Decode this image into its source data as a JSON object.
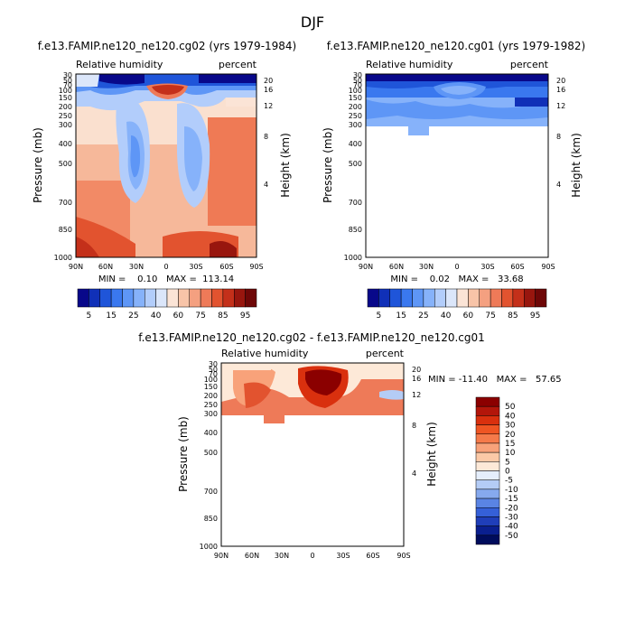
{
  "page_title": "DJF",
  "chart_data": [
    {
      "type": "heatmap",
      "title": "f.e13.FAMIP.ne120_ne120.cg02 (yrs 1979-1984)",
      "variable": "Relative humidity",
      "units": "percent",
      "xlabel": "",
      "ylabel": "Pressure (mb)",
      "y2label": "Height (km)",
      "x_ticks": [
        "90N",
        "60N",
        "30N",
        "0",
        "30S",
        "60S",
        "90S"
      ],
      "y_ticks": [
        "30",
        "50",
        "70",
        "100",
        "150",
        "200",
        "250",
        "300",
        "400",
        "500",
        "700",
        "850",
        "1000"
      ],
      "height_ticks": [
        "20",
        "16",
        "12",
        "8",
        "4"
      ],
      "ylim": [
        30,
        1000
      ],
      "xlim": [
        90,
        -90
      ],
      "stats": "MIN =    0.10   MAX =  113.14",
      "min": 0.1,
      "max": 113.14,
      "colorbar_labels": [
        "5",
        "15",
        "25",
        "40",
        "60",
        "75",
        "85",
        "95"
      ],
      "colorbar_levels": [
        5,
        10,
        15,
        20,
        25,
        30,
        40,
        50,
        60,
        70,
        75,
        80,
        85,
        90,
        95
      ]
    },
    {
      "type": "heatmap",
      "title": "f.e13.FAMIP.ne120_ne120.cg01 (yrs 1979-1982)",
      "variable": "Relative humidity",
      "units": "percent",
      "xlabel": "",
      "ylabel": "Pressure (mb)",
      "y2label": "Height (km)",
      "x_ticks": [
        "90N",
        "60N",
        "30N",
        "0",
        "30S",
        "60S",
        "90S"
      ],
      "y_ticks": [
        "30",
        "50",
        "70",
        "100",
        "150",
        "200",
        "250",
        "300",
        "400",
        "500",
        "700",
        "850",
        "1000"
      ],
      "height_ticks": [
        "20",
        "16",
        "12",
        "8",
        "4"
      ],
      "ylim": [
        30,
        1000
      ],
      "xlim": [
        90,
        -90
      ],
      "data_bottom_mb": 300,
      "stats": "MIN =    0.02   MAX =   33.68",
      "min": 0.02,
      "max": 33.68,
      "colorbar_labels": [
        "5",
        "15",
        "25",
        "40",
        "60",
        "75",
        "85",
        "95"
      ],
      "colorbar_levels": [
        5,
        10,
        15,
        20,
        25,
        30,
        40,
        50,
        60,
        70,
        75,
        80,
        85,
        90,
        95
      ]
    },
    {
      "type": "heatmap",
      "title": "f.e13.FAMIP.ne120_ne120.cg02 - f.e13.FAMIP.ne120_ne120.cg01",
      "variable": "Relative humidity",
      "units": "percent",
      "xlabel": "",
      "ylabel": "Pressure (mb)",
      "y2label": "Height (km)",
      "x_ticks": [
        "90N",
        "60N",
        "30N",
        "0",
        "30S",
        "60S",
        "90S"
      ],
      "y_ticks": [
        "30",
        "50",
        "70",
        "100",
        "150",
        "200",
        "250",
        "300",
        "400",
        "500",
        "700",
        "850",
        "1000"
      ],
      "height_ticks": [
        "20",
        "16",
        "12",
        "8",
        "4"
      ],
      "ylim": [
        30,
        1000
      ],
      "xlim": [
        90,
        -90
      ],
      "data_bottom_mb": 300,
      "stats": "MIN = -11.40   MAX =   57.65",
      "min": -11.4,
      "max": 57.65,
      "colorbar_labels": [
        "50",
        "40",
        "30",
        "20",
        "15",
        "10",
        "5",
        "0",
        "-5",
        "-10",
        "-15",
        "-20",
        "-30",
        "-40",
        "-50"
      ]
    }
  ],
  "colors": {
    "seq": [
      "#08088a",
      "#1030b8",
      "#1f55d9",
      "#3a78ef",
      "#5e96f6",
      "#86b2fa",
      "#b2cdfb",
      "#dbe6fa",
      "#fbe4d6",
      "#f8c4a8",
      "#f4a080",
      "#ee7a58",
      "#e2532f",
      "#c4301a",
      "#98160e",
      "#6e0707"
    ],
    "diverging": [
      "#8b0000",
      "#b3160a",
      "#d9300e",
      "#ef5523",
      "#f57a4a",
      "#f8a27a",
      "#fbc9a7",
      "#fde9d8",
      "#e5eefc",
      "#b4ccf6",
      "#86a9ee",
      "#5a84e4",
      "#3560d8",
      "#1f3eb9",
      "#0a1f8f",
      "#000c5c"
    ]
  }
}
